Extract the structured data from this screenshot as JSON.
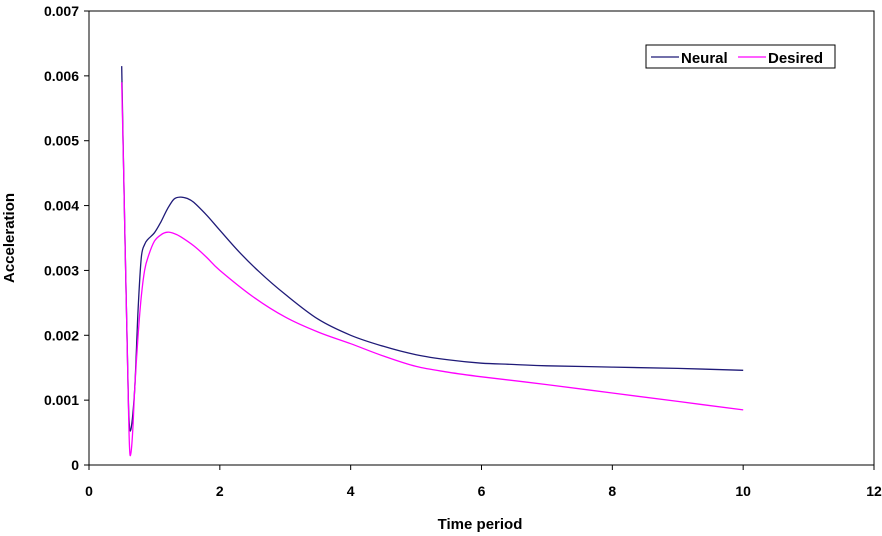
{
  "chart_data": {
    "type": "line",
    "title": "",
    "xlabel": "Time period",
    "ylabel": "Acceleration",
    "xlim": [
      0,
      12
    ],
    "ylim": [
      0,
      0.007
    ],
    "xticks": [
      "0",
      "2",
      "4",
      "6",
      "8",
      "10",
      "12"
    ],
    "yticks": [
      "0",
      "0.001",
      "0.002",
      "0.003",
      "0.004",
      "0.005",
      "0.006",
      "0.007"
    ],
    "grid": false,
    "legend_position": "top-right",
    "series": [
      {
        "name": "Neural",
        "color": "#1f1a78",
        "x": [
          0.5,
          0.53,
          0.57,
          0.6,
          0.62,
          0.65,
          0.7,
          0.75,
          0.8,
          0.85,
          0.9,
          1.0,
          1.1,
          1.2,
          1.3,
          1.4,
          1.5,
          1.6,
          1.8,
          2.0,
          2.3,
          2.6,
          3.0,
          3.5,
          4.0,
          4.5,
          5.0,
          5.5,
          6.0,
          6.5,
          7.0,
          8.0,
          9.0,
          10.0
        ],
        "y": [
          0.00615,
          0.0045,
          0.0025,
          0.00105,
          0.00058,
          0.0006,
          0.0012,
          0.0024,
          0.0032,
          0.0034,
          0.00348,
          0.00358,
          0.00375,
          0.00395,
          0.0041,
          0.00413,
          0.00411,
          0.00405,
          0.00385,
          0.00362,
          0.00328,
          0.00298,
          0.00263,
          0.00225,
          0.002,
          0.00183,
          0.0017,
          0.00162,
          0.00157,
          0.00155,
          0.00153,
          0.00151,
          0.00149,
          0.00146
        ]
      },
      {
        "name": "Desired",
        "color": "#ff00ff",
        "x": [
          0.5,
          0.53,
          0.57,
          0.6,
          0.62,
          0.64,
          0.67,
          0.7,
          0.75,
          0.8,
          0.85,
          0.9,
          1.0,
          1.1,
          1.2,
          1.3,
          1.4,
          1.6,
          1.8,
          2.0,
          2.5,
          3.0,
          3.5,
          4.0,
          4.5,
          5.0,
          5.5,
          6.0,
          7.0,
          8.0,
          9.0,
          10.0
        ],
        "y": [
          0.0059,
          0.0045,
          0.0025,
          0.001,
          0.00025,
          0.00018,
          0.00055,
          0.0012,
          0.002,
          0.0026,
          0.003,
          0.0032,
          0.00345,
          0.00355,
          0.00359,
          0.00357,
          0.00352,
          0.00338,
          0.0032,
          0.003,
          0.0026,
          0.00228,
          0.00205,
          0.00187,
          0.00168,
          0.00152,
          0.00143,
          0.00136,
          0.00124,
          0.00111,
          0.00098,
          0.00085
        ]
      }
    ]
  }
}
